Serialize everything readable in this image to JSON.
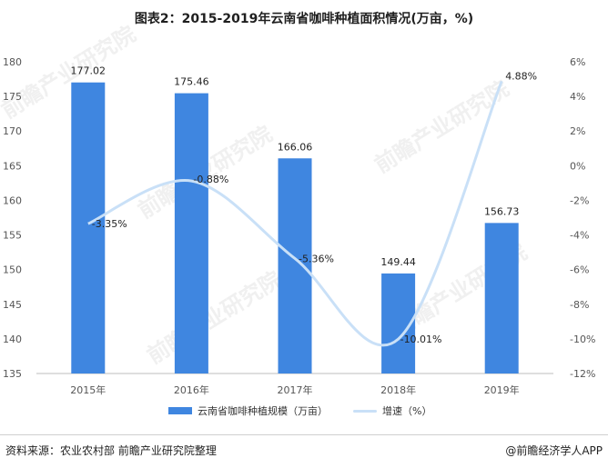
{
  "title": "图表2：2015-2019年云南省咖啡种植面积情况(万亩，%)",
  "colors": {
    "bar": "#3f86e0",
    "line": "#c9e0f7",
    "axis": "#bdbdbd"
  },
  "chart_data": {
    "type": "bar",
    "categories": [
      "2015年",
      "2016年",
      "2017年",
      "2018年",
      "2019年"
    ],
    "series": [
      {
        "name": "云南省咖啡种植规模（万亩）",
        "type": "bar",
        "axis": "left",
        "values": [
          177.02,
          175.46,
          166.06,
          149.44,
          156.73
        ],
        "labels": [
          "177.02",
          "175.46",
          "166.06",
          "149.44",
          "156.73"
        ]
      },
      {
        "name": "增速（%）",
        "type": "line",
        "axis": "right",
        "smooth": true,
        "values": [
          -3.35,
          -0.88,
          -5.36,
          -10.01,
          4.88
        ],
        "labels": [
          "-3.35%",
          "-0.88%",
          "-5.36%",
          "-10.01%",
          "4.88%"
        ]
      }
    ],
    "y_left": {
      "ylim": [
        135,
        180
      ],
      "ticks": [
        "135",
        "140",
        "145",
        "150",
        "155",
        "160",
        "165",
        "170",
        "175",
        "180"
      ]
    },
    "y_right": {
      "ylim": [
        -12,
        6
      ],
      "ticks": [
        "-12%",
        "-10%",
        "-8%",
        "-6%",
        "-4%",
        "-2%",
        "0%",
        "2%",
        "4%",
        "6%"
      ]
    },
    "grid": false,
    "legend_position": "bottom"
  },
  "legend": {
    "bar_label": "云南省咖啡种植规模（万亩）",
    "line_label": "增速（%）"
  },
  "footer": {
    "source": "资料来源：农业农村部 前瞻产业研究院整理",
    "brand": "@前瞻经济学人APP"
  },
  "watermark": "前瞻产业研究院"
}
